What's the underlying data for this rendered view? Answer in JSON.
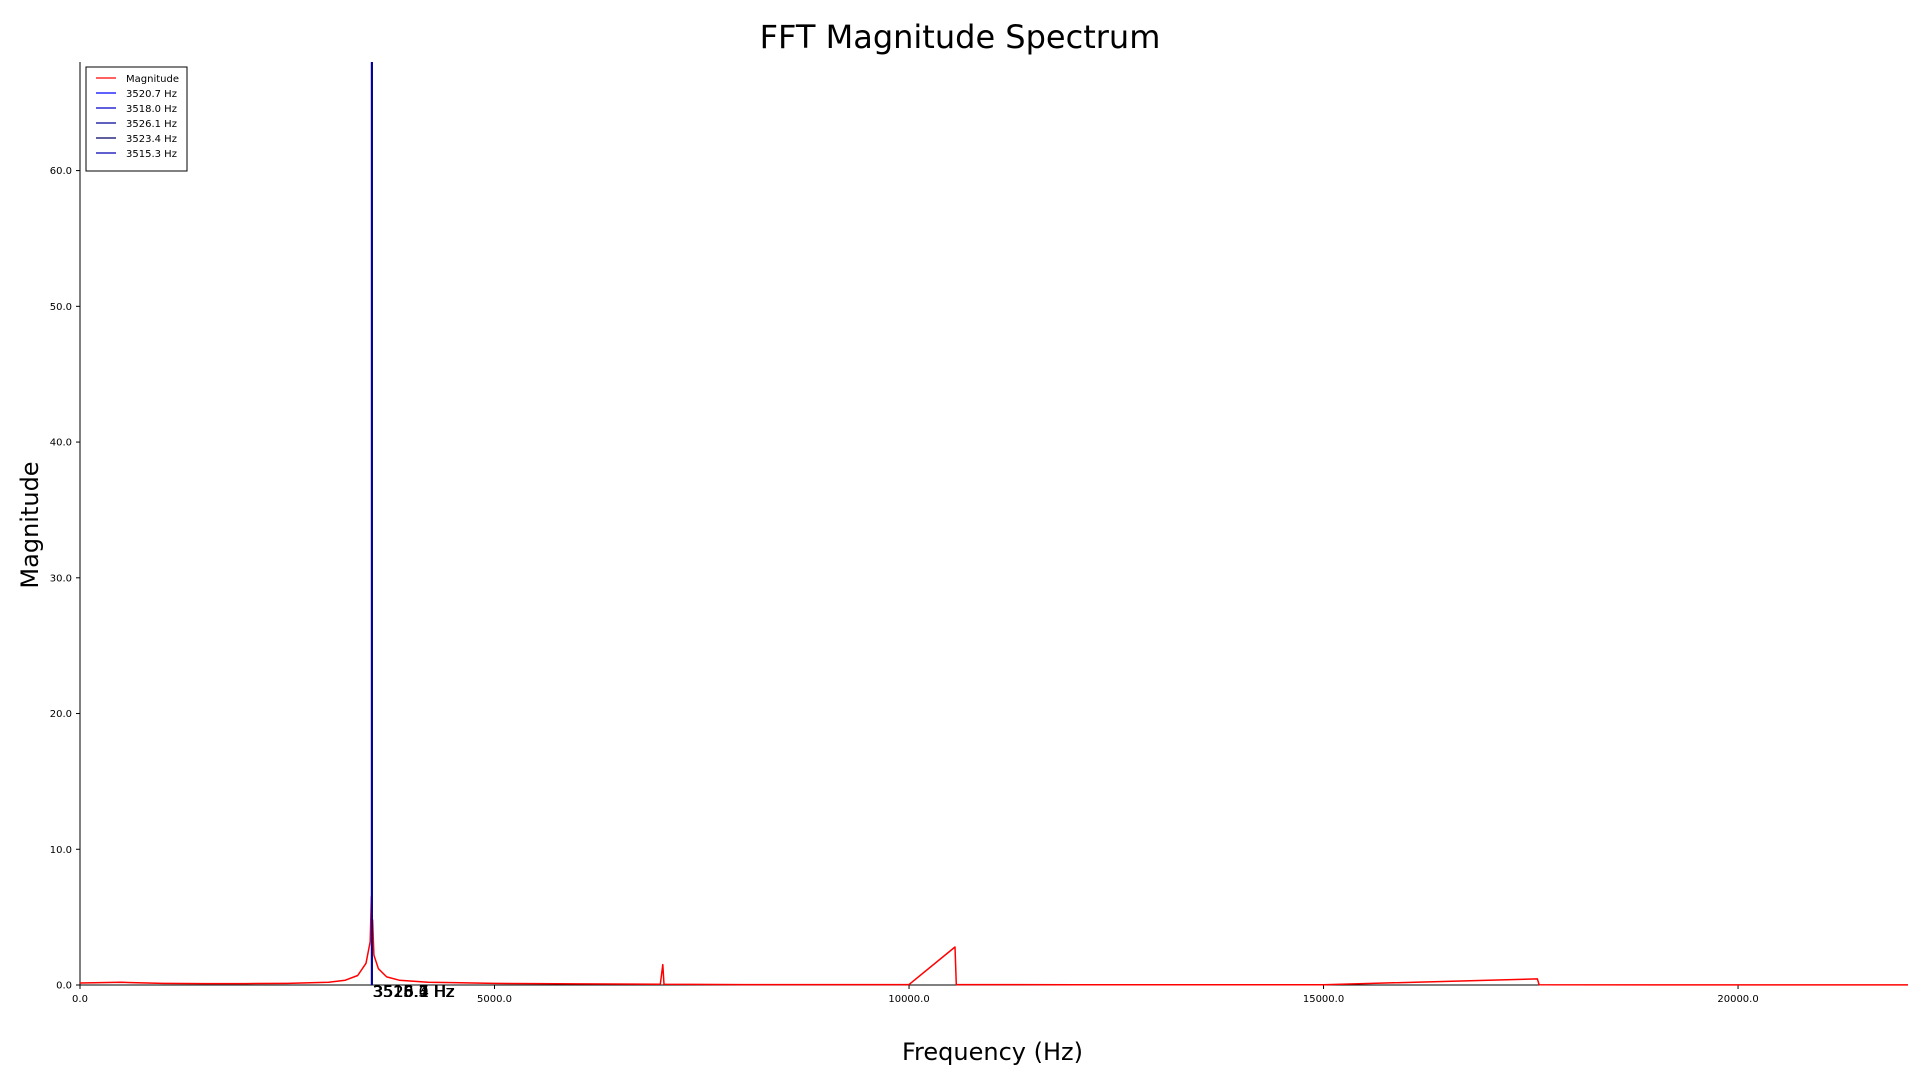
{
  "chart_data": {
    "type": "line",
    "title": "FFT Magnitude Spectrum",
    "xlabel": "Frequency (Hz)",
    "ylabel": "Magnitude",
    "xlim": [
      0,
      22050
    ],
    "ylim": [
      0,
      68
    ],
    "x_ticks": [
      0,
      5000,
      10000,
      15000,
      20000
    ],
    "x_tick_labels": [
      "0.0",
      "5000.0",
      "10000.0",
      "15000.0",
      "20000.0"
    ],
    "y_ticks": [
      0,
      10,
      20,
      30,
      40,
      50,
      60
    ],
    "y_tick_labels": [
      "0.0",
      "10.0",
      "20.0",
      "30.0",
      "40.0",
      "50.0",
      "60.0"
    ],
    "grid": false,
    "legend_position": "top-left",
    "legend": [
      {
        "label": "Magnitude",
        "color": "#ff0000"
      },
      {
        "label": "3520.7 Hz",
        "color": "#0000ff"
      },
      {
        "label": "3518.0 Hz",
        "color": "#0000cc"
      },
      {
        "label": "3526.1 Hz",
        "color": "#000099"
      },
      {
        "label": "3523.4 Hz",
        "color": "#000066"
      },
      {
        "label": "3515.3 Hz",
        "color": "#0000b3"
      }
    ],
    "series": [
      {
        "name": "Magnitude",
        "color": "#ff0000",
        "points": [
          [
            0,
            0.15
          ],
          [
            500,
            0.2
          ],
          [
            1000,
            0.12
          ],
          [
            1500,
            0.1
          ],
          [
            2000,
            0.1
          ],
          [
            2500,
            0.12
          ],
          [
            3000,
            0.2
          ],
          [
            3200,
            0.35
          ],
          [
            3350,
            0.7
          ],
          [
            3450,
            1.6
          ],
          [
            3500,
            3.2
          ],
          [
            3515,
            6.5
          ],
          [
            3520,
            4.5
          ],
          [
            3530,
            4.8
          ],
          [
            3545,
            2.2
          ],
          [
            3600,
            1.2
          ],
          [
            3700,
            0.6
          ],
          [
            3850,
            0.35
          ],
          [
            4200,
            0.2
          ],
          [
            4500,
            0.18
          ],
          [
            5000,
            0.12
          ],
          [
            5500,
            0.1
          ],
          [
            6000,
            0.08
          ],
          [
            7000,
            0.05
          ],
          [
            7030,
            1.5
          ],
          [
            7045,
            0.05
          ],
          [
            8000,
            0.03
          ],
          [
            9000,
            0.03
          ],
          [
            10000,
            0.03
          ],
          [
            10555,
            2.8
          ],
          [
            10570,
            0.03
          ],
          [
            12000,
            0.02
          ],
          [
            13000,
            0.02
          ],
          [
            15000,
            0.02
          ],
          [
            17580,
            0.45
          ],
          [
            17600,
            0.02
          ],
          [
            20000,
            0.01
          ],
          [
            22050,
            0.01
          ]
        ]
      }
    ],
    "peaks": [
      {
        "frequency": 3520.7,
        "magnitude": 68,
        "label": "3520.7 Hz"
      },
      {
        "frequency": 3518.0,
        "magnitude": 68,
        "label": "3518.0 Hz"
      },
      {
        "frequency": 3526.1,
        "magnitude": 68,
        "label": "3526.1 Hz"
      },
      {
        "frequency": 3523.4,
        "magnitude": 68,
        "label": "3523.4 Hz"
      },
      {
        "frequency": 3515.3,
        "magnitude": 68,
        "label": "3515.3 Hz"
      }
    ]
  }
}
